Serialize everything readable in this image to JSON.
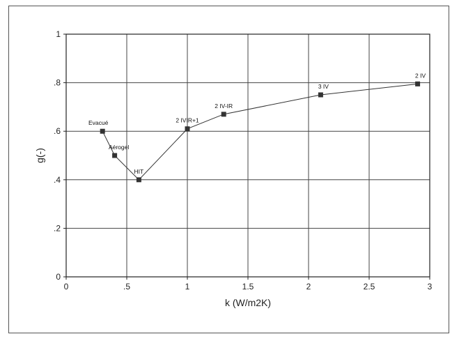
{
  "chart_data": {
    "type": "line",
    "title": "",
    "xlabel": "k (W/m2K)",
    "ylabel": "g(-)",
    "xlim": [
      0,
      3
    ],
    "ylim": [
      0,
      1
    ],
    "x_ticks": [
      0,
      0.5,
      1,
      1.5,
      2,
      2.5,
      3
    ],
    "x_tick_labels": [
      "0",
      ".5",
      "1",
      "1.5",
      "2",
      "2.5",
      "3"
    ],
    "y_ticks": [
      0,
      0.2,
      0.4,
      0.6,
      0.8,
      1
    ],
    "y_tick_labels": [
      "0",
      ".2",
      ".4",
      ".6",
      ".8",
      "1"
    ],
    "grid": true,
    "marker": "square",
    "series": [
      {
        "x": [
          0.3,
          0.4,
          0.6,
          1.0,
          1.3,
          2.1,
          2.9
        ],
        "y": [
          0.6,
          0.5,
          0.4,
          0.61,
          0.67,
          0.75,
          0.795
        ],
        "point_labels": [
          "Evacué",
          "Aérogel",
          "HIT",
          "2 IVIR+1",
          "2 IV-IR",
          "3 IV",
          "2 IV"
        ]
      }
    ]
  }
}
